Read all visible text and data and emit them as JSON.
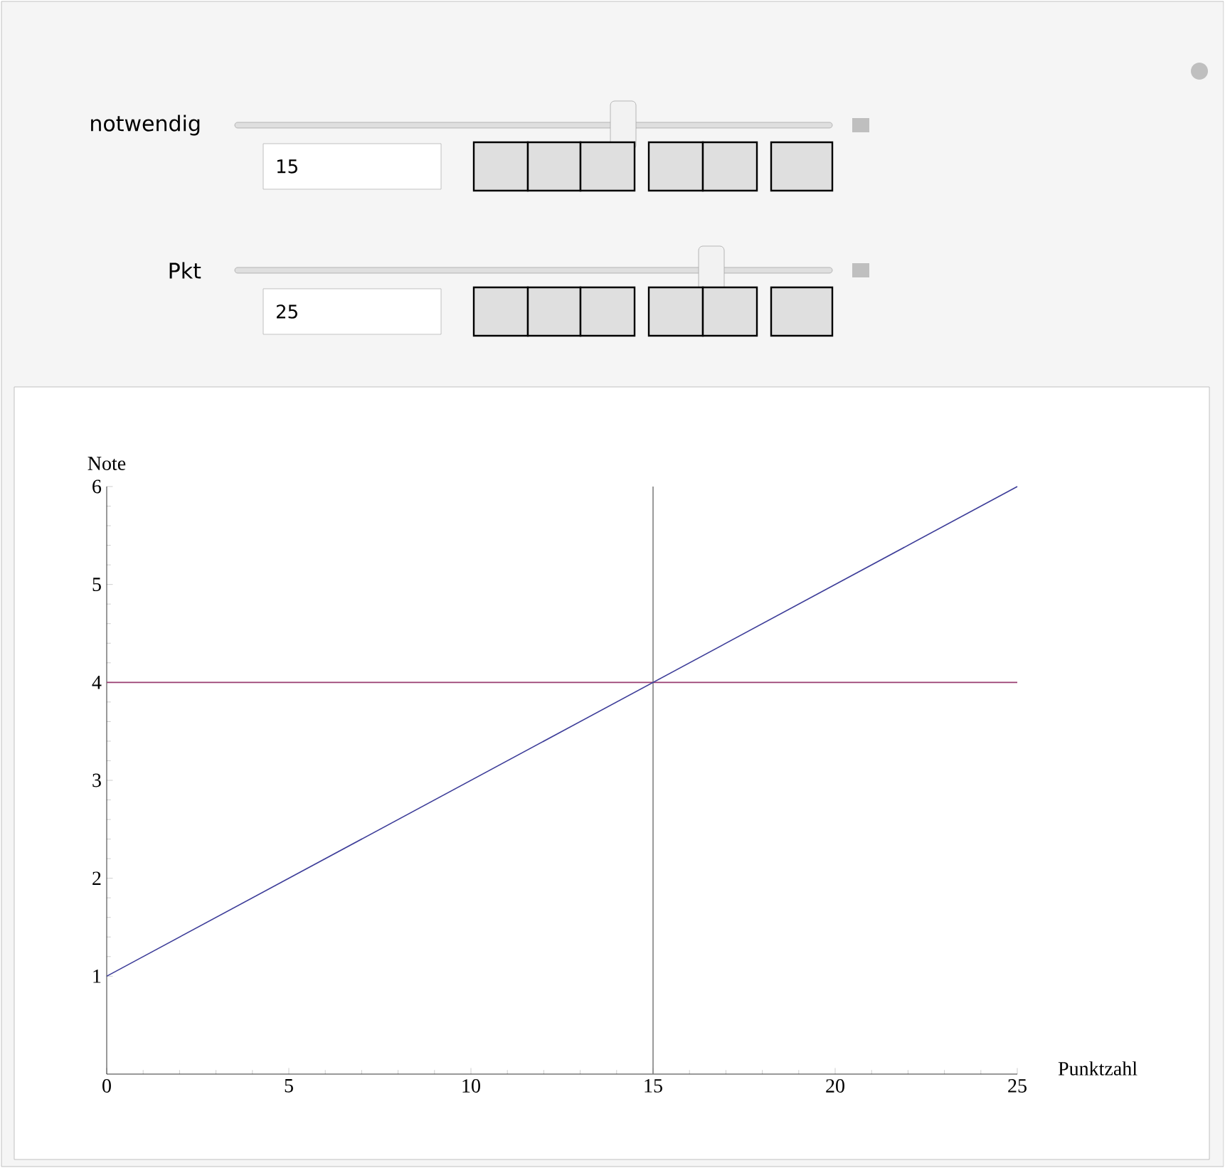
{
  "chart_data": {
    "type": "line",
    "xlabel": "Punktzahl",
    "ylabel": "Note",
    "xlim": [
      0,
      25
    ],
    "ylim": [
      0,
      6
    ],
    "xticks": [
      0,
      5,
      10,
      15,
      20,
      25
    ],
    "yticks": [
      1,
      2,
      3,
      4,
      5,
      6
    ],
    "series": [
      {
        "color": "#3d3d99",
        "x": [
          0,
          25
        ],
        "values": [
          1,
          6
        ]
      }
    ],
    "ref_lines": [
      {
        "axis": "y",
        "value": 4,
        "color": "#993d71"
      },
      {
        "axis": "x",
        "value": 15,
        "color": "#808080"
      }
    ],
    "annotations": [
      "notwendig",
      "15",
      "Pkt",
      "25"
    ]
  }
}
